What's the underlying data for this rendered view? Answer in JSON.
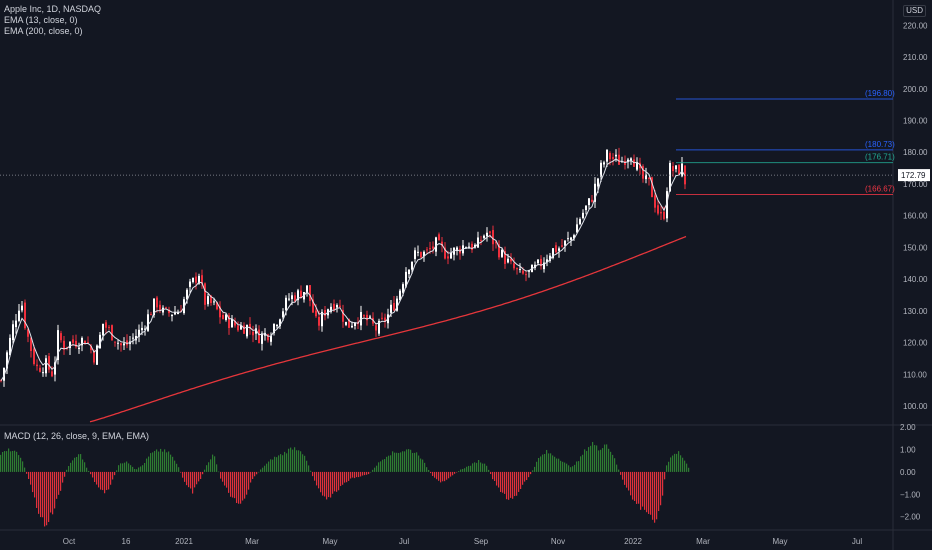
{
  "header": {
    "title": "Apple Inc, 1D, NASDAQ",
    "indicators": [
      "EMA (13, close, 0)",
      "EMA (200, close, 0)"
    ],
    "currency_button": "USD"
  },
  "macd_label": "MACD (12, 26, close, 9, EMA, EMA)",
  "colors": {
    "background": "#131722",
    "up": "#ffffff",
    "down": "#ef2f3c",
    "ema13": "#e0e3eb",
    "ema200": "#e5363b",
    "hist_up": "#2e7d32",
    "hist_down": "#e0313c",
    "grid": "#2a2e39",
    "level_blue": "#2962ff",
    "level_green": "#22ab94",
    "level_red": "#f23645"
  },
  "chart_data": [
    {
      "type": "candlestick",
      "title": "Apple Inc, 1D, NASDAQ",
      "ylim": [
        94,
        228
      ],
      "y_ticks": [
        100,
        110,
        120,
        130,
        140,
        150,
        160,
        170,
        180,
        190,
        200,
        210,
        220
      ],
      "x_ticks": [
        "Oct",
        "16",
        "2021",
        "Mar",
        "May",
        "Jul",
        "Sep",
        "Nov",
        "2022",
        "Mar",
        "May",
        "Jul"
      ],
      "last_price": "172.79",
      "price_levels": [
        {
          "label": "(196.80)",
          "value": 196.8,
          "color": "blue"
        },
        {
          "label": "(180.73)",
          "value": 180.73,
          "color": "blue"
        },
        {
          "label": "(176.71)",
          "value": 176.71,
          "color": "green"
        },
        {
          "label": "(166.67)",
          "value": 166.67,
          "color": "red"
        }
      ],
      "close_anchors": [
        [
          0,
          108
        ],
        [
          12,
          125
        ],
        [
          20,
          134
        ],
        [
          25,
          124
        ],
        [
          35,
          112
        ],
        [
          45,
          113
        ],
        [
          52,
          110
        ],
        [
          57,
          122
        ],
        [
          63,
          119
        ],
        [
          70,
          120
        ],
        [
          85,
          121
        ],
        [
          94,
          115
        ],
        [
          102,
          126
        ],
        [
          110,
          123
        ],
        [
          120,
          119
        ],
        [
          125,
          119
        ],
        [
          140,
          124
        ],
        [
          155,
          133
        ],
        [
          163,
          129
        ],
        [
          178,
          130
        ],
        [
          188,
          137
        ],
        [
          198,
          142
        ],
        [
          203,
          133
        ],
        [
          212,
          132
        ],
        [
          220,
          128
        ],
        [
          237,
          125
        ],
        [
          248,
          125
        ],
        [
          258,
          122
        ],
        [
          268,
          123
        ],
        [
          288,
          134
        ],
        [
          296,
          135
        ],
        [
          306,
          137
        ],
        [
          316,
          125
        ],
        [
          326,
          131
        ],
        [
          336,
          133
        ],
        [
          346,
          125
        ],
        [
          356,
          128
        ],
        [
          366,
          127
        ],
        [
          376,
          124
        ],
        [
          386,
          128
        ],
        [
          396,
          134
        ],
        [
          406,
          144
        ],
        [
          415,
          148
        ],
        [
          425,
          148
        ],
        [
          435,
          151
        ],
        [
          445,
          148
        ],
        [
          455,
          149
        ],
        [
          465,
          151
        ],
        [
          475,
          150
        ],
        [
          485,
          155
        ],
        [
          492,
          152
        ],
        [
          500,
          148
        ],
        [
          510,
          144
        ],
        [
          520,
          141
        ],
        [
          530,
          142
        ],
        [
          540,
          145
        ],
        [
          550,
          149
        ],
        [
          560,
          150
        ],
        [
          570,
          153
        ],
        [
          580,
          160
        ],
        [
          590,
          165
        ],
        [
          600,
          175
        ],
        [
          606,
          179
        ],
        [
          612,
          178
        ],
        [
          620,
          177
        ],
        [
          630,
          180
        ],
        [
          640,
          172
        ],
        [
          648,
          170
        ],
        [
          656,
          162
        ],
        [
          662,
          158
        ],
        [
          668,
          175
        ],
        [
          675,
          174
        ],
        [
          681,
          175
        ],
        [
          686,
          168
        ]
      ],
      "ema13_label": "EMA (13, close, 0)",
      "ema200_label": "EMA (200, close, 0)"
    },
    {
      "type": "histogram",
      "title": "MACD (12, 26, close, 9, EMA, EMA)",
      "ylim": [
        -2.6,
        2.1
      ],
      "y_ticks": [
        -2.0,
        -1.0,
        0.0,
        1.0,
        2.0
      ],
      "hist_anchors": [
        [
          0,
          0.8
        ],
        [
          10,
          1.0
        ],
        [
          20,
          0.7
        ],
        [
          30,
          -0.6
        ],
        [
          38,
          -1.8
        ],
        [
          45,
          -2.4
        ],
        [
          52,
          -1.8
        ],
        [
          60,
          -0.8
        ],
        [
          66,
          0.1
        ],
        [
          73,
          0.6
        ],
        [
          80,
          0.8
        ],
        [
          86,
          0.2
        ],
        [
          95,
          -0.5
        ],
        [
          104,
          -1.0
        ],
        [
          110,
          -0.6
        ],
        [
          118,
          0.3
        ],
        [
          126,
          0.5
        ],
        [
          135,
          0.1
        ],
        [
          142,
          0.3
        ],
        [
          150,
          0.8
        ],
        [
          160,
          1.0
        ],
        [
          170,
          0.8
        ],
        [
          178,
          0.2
        ],
        [
          185,
          -0.6
        ],
        [
          192,
          -0.9
        ],
        [
          200,
          -0.3
        ],
        [
          207,
          0.4
        ],
        [
          213,
          0.8
        ],
        [
          220,
          -0.3
        ],
        [
          228,
          -0.9
        ],
        [
          236,
          -1.4
        ],
        [
          244,
          -1.2
        ],
        [
          252,
          -0.3
        ],
        [
          262,
          0.2
        ],
        [
          272,
          0.6
        ],
        [
          282,
          0.8
        ],
        [
          292,
          1.1
        ],
        [
          300,
          1.0
        ],
        [
          307,
          0.4
        ],
        [
          313,
          -0.3
        ],
        [
          320,
          -0.9
        ],
        [
          328,
          -1.2
        ],
        [
          335,
          -0.9
        ],
        [
          342,
          -0.6
        ],
        [
          350,
          -0.3
        ],
        [
          360,
          -0.2
        ],
        [
          368,
          -0.1
        ],
        [
          378,
          0.4
        ],
        [
          388,
          0.8
        ],
        [
          398,
          0.9
        ],
        [
          408,
          1.0
        ],
        [
          418,
          0.8
        ],
        [
          425,
          0.3
        ],
        [
          432,
          -0.2
        ],
        [
          440,
          -0.5
        ],
        [
          450,
          -0.2
        ],
        [
          460,
          0.1
        ],
        [
          470,
          0.3
        ],
        [
          478,
          0.5
        ],
        [
          486,
          0.3
        ],
        [
          492,
          -0.3
        ],
        [
          500,
          -0.9
        ],
        [
          508,
          -1.2
        ],
        [
          516,
          -1.1
        ],
        [
          522,
          -0.6
        ],
        [
          530,
          -0.1
        ],
        [
          538,
          0.6
        ],
        [
          546,
          0.9
        ],
        [
          554,
          0.7
        ],
        [
          562,
          0.5
        ],
        [
          570,
          0.2
        ],
        [
          578,
          0.5
        ],
        [
          585,
          1.0
        ],
        [
          592,
          1.3
        ],
        [
          598,
          1.0
        ],
        [
          605,
          1.3
        ],
        [
          612,
          0.8
        ],
        [
          618,
          0.1
        ],
        [
          624,
          -0.6
        ],
        [
          632,
          -1.2
        ],
        [
          640,
          -1.6
        ],
        [
          648,
          -1.9
        ],
        [
          655,
          -2.1
        ],
        [
          660,
          -1.6
        ],
        [
          666,
          0.3
        ],
        [
          672,
          0.8
        ],
        [
          678,
          0.9
        ],
        [
          684,
          0.5
        ],
        [
          688,
          0.2
        ]
      ]
    }
  ]
}
